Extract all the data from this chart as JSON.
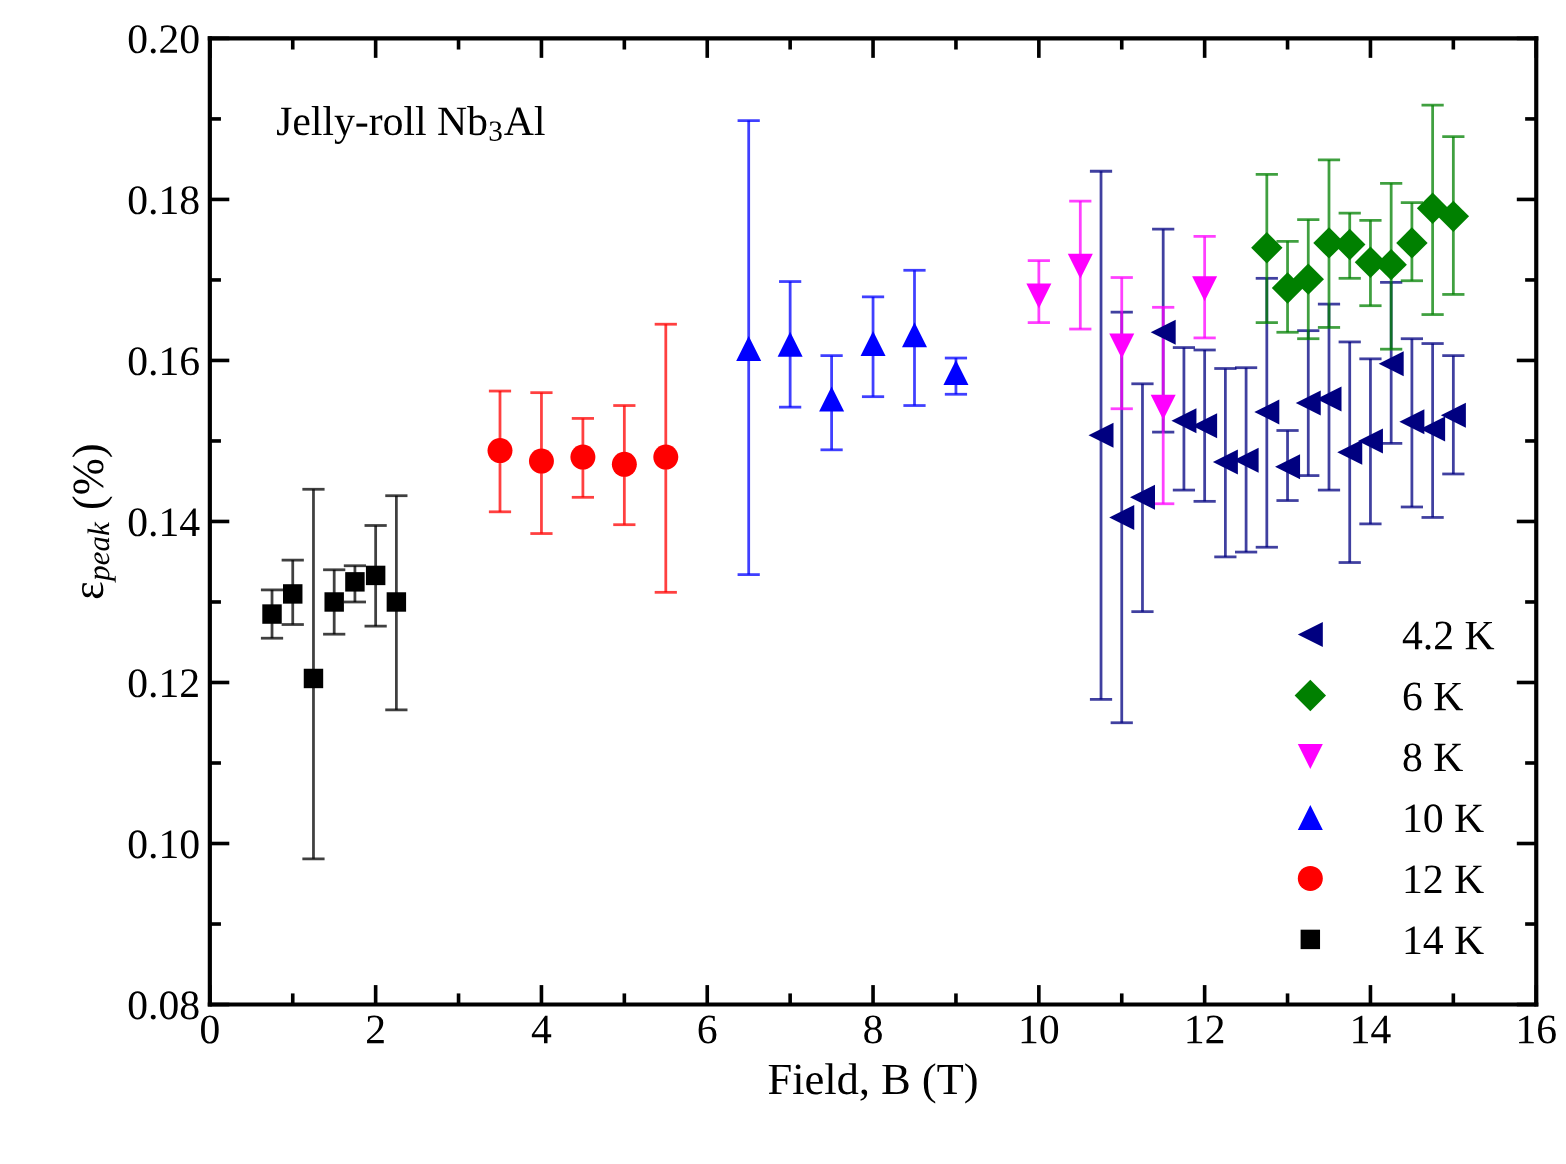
{
  "chart_data": {
    "type": "scatter",
    "xlabel": "Field, B (T)",
    "ylabel": "ε$_{peak}$ (%)",
    "annotations": [
      "Jelly-roll Nb$_{3}$Al"
    ],
    "xlim": [
      0,
      16
    ],
    "xticks": [
      0,
      2,
      4,
      6,
      8,
      10,
      12,
      14,
      16
    ],
    "ylim": [
      0.08,
      0.2
    ],
    "yticks": [
      {
        "value": 0.08,
        "label": "0.08"
      },
      {
        "value": 0.1,
        "label": "0.10"
      },
      {
        "value": 0.12,
        "label": "0.12"
      },
      {
        "value": 0.14,
        "label": "0.14"
      },
      {
        "value": 0.16,
        "label": "0.16"
      },
      {
        "value": 0.18,
        "label": "0.18"
      },
      {
        "value": 0.2,
        "label": "0.20"
      }
    ],
    "grid": false,
    "legend": "bottom right",
    "series": [
      {
        "name": "4.2 K",
        "color": "#000080",
        "marker": "triangle-left",
        "x": [
          10.75,
          11,
          11.25,
          11.5,
          11.75,
          12,
          12.25,
          12.5,
          12.75,
          13,
          13.25,
          13.5,
          13.75,
          14,
          14.25,
          14.5,
          14.75,
          15
        ],
        "values": [
          0.1507,
          0.1405,
          0.143,
          0.1635,
          0.1525,
          0.1519,
          0.1474,
          0.1476,
          0.1536,
          0.1468,
          0.1547,
          0.1552,
          0.1486,
          0.15,
          0.1596,
          0.1524,
          0.1515,
          0.1532
        ],
        "errors": [
          [
            0.1179,
            0.1835
          ],
          [
            0.115,
            0.166
          ],
          [
            0.1288,
            0.1571
          ],
          [
            0.1511,
            0.1763
          ],
          [
            0.1439,
            0.1616
          ],
          [
            0.1425,
            0.1613
          ],
          [
            0.1356,
            0.159
          ],
          [
            0.1362,
            0.1591
          ],
          [
            0.1368,
            0.1702
          ],
          [
            0.1426,
            0.1513
          ],
          [
            0.1457,
            0.1637
          ],
          [
            0.1439,
            0.167
          ],
          [
            0.1349,
            0.1623
          ],
          [
            0.1397,
            0.1602
          ],
          [
            0.1497,
            0.1697
          ],
          [
            0.1418,
            0.1627
          ],
          [
            0.1405,
            0.1621
          ],
          [
            0.1459,
            0.1606
          ]
        ]
      },
      {
        "name": "6 K",
        "color": "#008000",
        "marker": "diamond",
        "x": [
          12.75,
          13,
          13.25,
          13.5,
          13.75,
          14,
          14.25,
          14.5,
          14.75,
          15
        ],
        "values": [
          0.174,
          0.169,
          0.1701,
          0.1746,
          0.1744,
          0.1722,
          0.1719,
          0.1746,
          0.1789,
          0.1779
        ],
        "errors": [
          [
            0.1647,
            0.1831
          ],
          [
            0.1635,
            0.1748
          ],
          [
            0.1627,
            0.1775
          ],
          [
            0.1641,
            0.1849
          ],
          [
            0.1702,
            0.1783
          ],
          [
            0.1668,
            0.1774
          ],
          [
            0.1614,
            0.182
          ],
          [
            0.1699,
            0.1796
          ],
          [
            0.1657,
            0.1917
          ],
          [
            0.1682,
            0.1878
          ]
        ]
      },
      {
        "name": "8 K",
        "color": "#ff00ff",
        "marker": "triangle-down",
        "x": [
          10,
          10.5,
          11,
          11.5,
          12
        ],
        "values": [
          0.168,
          0.1717,
          0.1618,
          0.1542,
          0.1689
        ],
        "errors": [
          [
            0.1647,
            0.1724
          ],
          [
            0.1639,
            0.1798
          ],
          [
            0.154,
            0.1703
          ],
          [
            0.1422,
            0.1666
          ],
          [
            0.1628,
            0.1754
          ]
        ]
      },
      {
        "name": "10 K",
        "color": "#0000ff",
        "marker": "triangle",
        "x": [
          6.5,
          7,
          7.5,
          8,
          8.5,
          9
        ],
        "values": [
          0.1615,
          0.162,
          0.1552,
          0.1621,
          0.1632,
          0.1585
        ],
        "errors": [
          [
            0.1334,
            0.1898
          ],
          [
            0.1542,
            0.1698
          ],
          [
            0.1489,
            0.1606
          ],
          [
            0.1555,
            0.1679
          ],
          [
            0.1544,
            0.1712
          ],
          [
            0.1558,
            0.1603
          ]
        ]
      },
      {
        "name": "12 K",
        "color": "#ff0000",
        "marker": "circle",
        "x": [
          3.5,
          4,
          4.5,
          5,
          5.5
        ],
        "values": [
          0.1488,
          0.1475,
          0.148,
          0.1471,
          0.148
        ],
        "errors": [
          [
            0.1412,
            0.1562
          ],
          [
            0.1385,
            0.156
          ],
          [
            0.143,
            0.1528
          ],
          [
            0.1396,
            0.1544
          ],
          [
            0.1312,
            0.1645
          ]
        ]
      },
      {
        "name": "14 K",
        "color": "#000000",
        "marker": "square",
        "x": [
          0.75,
          1,
          1.25,
          1.5,
          1.75,
          2,
          2.25
        ],
        "values": [
          0.1285,
          0.131,
          0.1205,
          0.13,
          0.1325,
          0.1333,
          0.13
        ],
        "errors": [
          [
            0.1255,
            0.1315
          ],
          [
            0.1272,
            0.1352
          ],
          [
            0.0981,
            0.144
          ],
          [
            0.126,
            0.134
          ],
          [
            0.13,
            0.1345
          ],
          [
            0.127,
            0.1395
          ],
          [
            0.1166,
            0.1432
          ]
        ]
      }
    ]
  }
}
